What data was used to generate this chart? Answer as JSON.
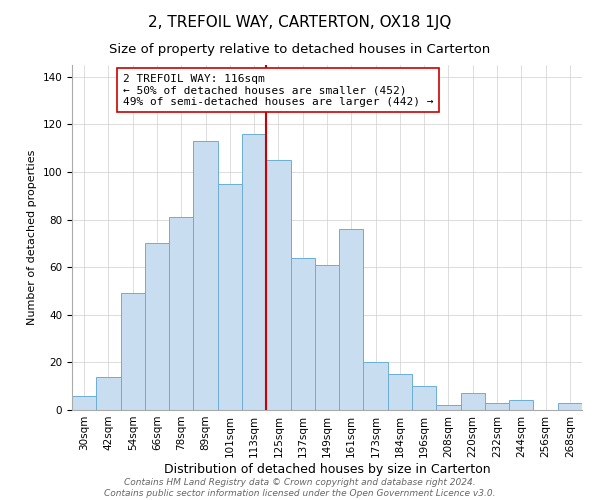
{
  "title": "2, TREFOIL WAY, CARTERTON, OX18 1JQ",
  "subtitle": "Size of property relative to detached houses in Carterton",
  "xlabel": "Distribution of detached houses by size in Carterton",
  "ylabel": "Number of detached properties",
  "footer_line1": "Contains HM Land Registry data © Crown copyright and database right 2024.",
  "footer_line2": "Contains public sector information licensed under the Open Government Licence v3.0.",
  "categories": [
    "30sqm",
    "42sqm",
    "54sqm",
    "66sqm",
    "78sqm",
    "89sqm",
    "101sqm",
    "113sqm",
    "125sqm",
    "137sqm",
    "149sqm",
    "161sqm",
    "173sqm",
    "184sqm",
    "196sqm",
    "208sqm",
    "220sqm",
    "232sqm",
    "244sqm",
    "256sqm",
    "268sqm"
  ],
  "values": [
    6,
    14,
    49,
    70,
    81,
    113,
    95,
    116,
    105,
    64,
    61,
    76,
    20,
    15,
    10,
    2,
    7,
    3,
    4,
    0,
    3
  ],
  "bar_color": "#c9ddf0",
  "bar_edge_color": "#6baed6",
  "vline_color": "#cc0000",
  "vline_x": 7.5,
  "annotation_line1": "2 TREFOIL WAY: 116sqm",
  "annotation_line2": "← 50% of detached houses are smaller (452)",
  "annotation_line3": "49% of semi-detached houses are larger (442) →",
  "box_edge_color": "#cc0000",
  "ylim": [
    0,
    145
  ],
  "yticks": [
    0,
    20,
    40,
    60,
    80,
    100,
    120,
    140
  ],
  "title_fontsize": 11,
  "subtitle_fontsize": 9.5,
  "xlabel_fontsize": 9,
  "ylabel_fontsize": 8,
  "tick_fontsize": 7.5,
  "annotation_fontsize": 8,
  "footer_fontsize": 6.5
}
